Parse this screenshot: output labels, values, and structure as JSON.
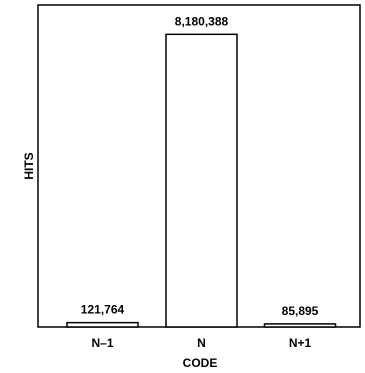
{
  "chart_data": {
    "type": "bar",
    "categories": [
      "N–1",
      "N",
      "N+1"
    ],
    "values": [
      121764,
      8180388,
      85895
    ],
    "value_labels": [
      "121,764",
      "8,180,388",
      "85,895"
    ],
    "title": "",
    "xlabel": "CODE",
    "ylabel": "HITS",
    "ylim": [
      0,
      9000000
    ],
    "y_scale": "linear",
    "grid": false,
    "legend": "none",
    "colors": {
      "bar_fill": "#ffffff",
      "bar_stroke": "#000000",
      "frame": "#000000"
    }
  }
}
